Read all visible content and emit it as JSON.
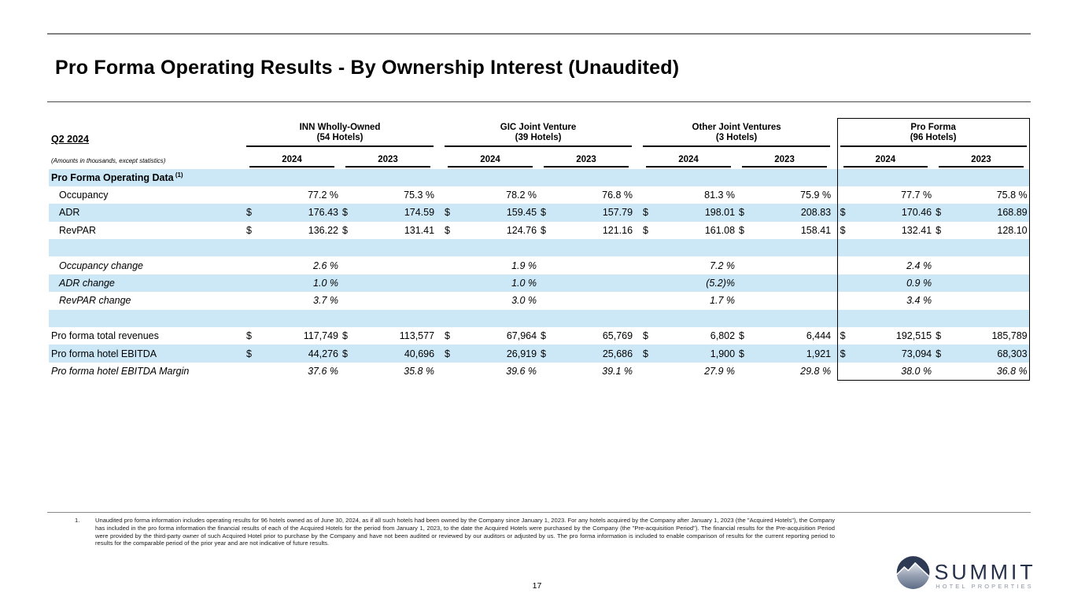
{
  "slide": {
    "title": "Pro Forma Operating Results - By Ownership Interest (Unaudited)",
    "page_number": "17"
  },
  "table": {
    "period_label": "Q2 2024",
    "units_note": "(Amounts in thousands, except statistics)",
    "groups": [
      {
        "name": "INN Wholly-Owned",
        "hotels": "(54 Hotels)",
        "years": [
          "2024",
          "2023"
        ]
      },
      {
        "name": "GIC Joint Venture",
        "hotels": "(39 Hotels)",
        "years": [
          "2024",
          "2023"
        ]
      },
      {
        "name": "Other Joint Ventures",
        "hotels": "(3 Hotels)",
        "years": [
          "2024",
          "2023"
        ]
      },
      {
        "name": "Pro Forma",
        "hotels": "(96 Hotels)",
        "years": [
          "2024",
          "2023"
        ],
        "boxed": true
      }
    ],
    "rows": [
      {
        "label": "Pro Forma Operating Data",
        "sup": "(1)",
        "type": "section",
        "indent": 0,
        "dollar": false,
        "values": [
          "",
          "",
          "",
          "",
          "",
          "",
          "",
          ""
        ]
      },
      {
        "label": "Occupancy",
        "type": "data",
        "indent": 1,
        "dollar": false,
        "values": [
          "77.2 %",
          "75.3 %",
          "78.2 %",
          "76.8 %",
          "81.3 %",
          "75.9 %",
          "77.7 %",
          "75.8 %"
        ]
      },
      {
        "label": "ADR",
        "type": "data",
        "indent": 1,
        "dollar": true,
        "values": [
          "176.43",
          "174.59",
          "159.45",
          "157.79",
          "198.01",
          "208.83",
          "170.46",
          "168.89"
        ]
      },
      {
        "label": "RevPAR",
        "type": "data",
        "indent": 1,
        "dollar": true,
        "values": [
          "136.22",
          "131.41",
          "124.76",
          "121.16",
          "161.08",
          "158.41",
          "132.41",
          "128.10"
        ]
      },
      {
        "label": "",
        "type": "spacer",
        "indent": 0,
        "dollar": false,
        "values": [
          "",
          "",
          "",
          "",
          "",
          "",
          "",
          ""
        ]
      },
      {
        "label": "Occupancy change",
        "type": "italic",
        "indent": 1,
        "dollar": false,
        "values": [
          "2.6 %",
          "",
          "1.9 %",
          "",
          "7.2 %",
          "",
          "2.4 %",
          ""
        ]
      },
      {
        "label": "ADR change",
        "type": "italic",
        "indent": 1,
        "dollar": false,
        "values": [
          "1.0 %",
          "",
          "1.0 %",
          "",
          "(5.2)%",
          "",
          "0.9 %",
          ""
        ]
      },
      {
        "label": "RevPAR change",
        "type": "italic",
        "indent": 1,
        "dollar": false,
        "values": [
          "3.7 %",
          "",
          "3.0 %",
          "",
          "1.7 %",
          "",
          "3.4 %",
          ""
        ]
      },
      {
        "label": "",
        "type": "spacer",
        "indent": 0,
        "dollar": false,
        "values": [
          "",
          "",
          "",
          "",
          "",
          "",
          "",
          ""
        ]
      },
      {
        "label": "Pro forma total revenues",
        "type": "data",
        "indent": 0,
        "dollar": true,
        "values": [
          "117,749",
          "113,577",
          "67,964",
          "65,769",
          "6,802",
          "6,444",
          "192,515",
          "185,789"
        ]
      },
      {
        "label": "Pro forma hotel EBITDA",
        "type": "data",
        "indent": 0,
        "dollar": true,
        "values": [
          "44,276",
          "40,696",
          "26,919",
          "25,686",
          "1,900",
          "1,921",
          "73,094",
          "68,303"
        ]
      },
      {
        "label": "Pro forma hotel EBITDA Margin",
        "type": "italic",
        "indent": 0,
        "dollar": false,
        "values": [
          "37.6 %",
          "35.8 %",
          "39.6 %",
          "39.1 %",
          "27.9 %",
          "29.8 %",
          "38.0 %",
          "36.8 %"
        ]
      }
    ]
  },
  "footnote": {
    "number": "1.",
    "text": "Unaudited pro forma information includes operating results for 96 hotels owned as of June 30, 2024, as if all such hotels had been owned by the Company since January 1, 2023. For any hotels acquired by the Company after January 1, 2023 (the \"Acquired Hotels\"), the Company has included in the pro forma information the financial results of each of the Acquired Hotels for the period from January 1, 2023, to the date the Acquired Hotels were purchased by the Company (the \"Pre-acquisition Period\"). The financial results for the Pre-acquisition Period were provided by the third-party owner of such Acquired Hotel prior to purchase by the Company and have not been audited or reviewed by our auditors or adjusted by us. The pro forma information is included to enable comparison of results for the current reporting period to results for the comparable period of the prior year and are not indicative of future results."
  },
  "logo": {
    "name": "SUMMIT",
    "tagline": "HOTEL PROPERTIES"
  },
  "colors": {
    "stripe": "#cce8f7",
    "logo_navy": "#2e3a54",
    "logo_text": "#26304a",
    "logo_gray": "#8d95a3"
  }
}
